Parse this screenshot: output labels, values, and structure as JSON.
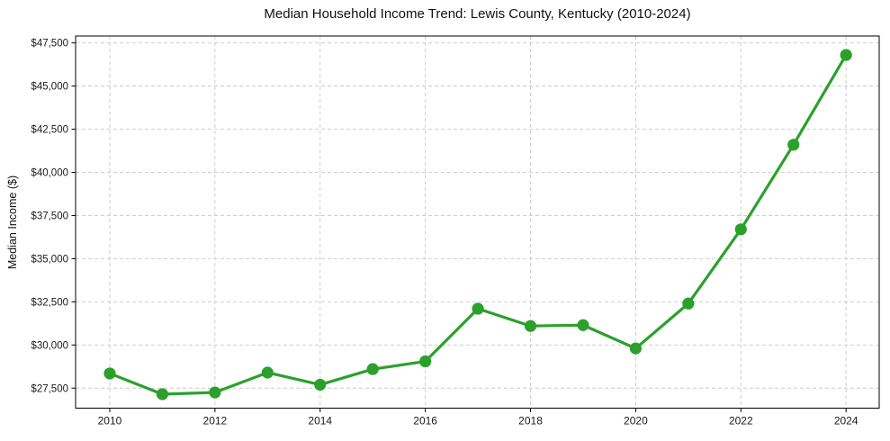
{
  "chart_data": {
    "type": "line",
    "title": "Median Household Income Trend: Lewis County, Kentucky (2010-2024)",
    "xlabel": "",
    "ylabel": "Median Income ($)",
    "x": [
      2010,
      2011,
      2012,
      2013,
      2014,
      2015,
      2016,
      2017,
      2018,
      2019,
      2020,
      2021,
      2022,
      2023,
      2024
    ],
    "values": [
      28350,
      27150,
      27250,
      28400,
      27700,
      28600,
      29050,
      32100,
      31100,
      31150,
      29800,
      32400,
      36700,
      41600,
      46800
    ],
    "xticks": {
      "values": [
        2010,
        2012,
        2014,
        2016,
        2018,
        2020,
        2022,
        2024
      ],
      "labels": [
        "2010",
        "2012",
        "2014",
        "2016",
        "2018",
        "2020",
        "2022",
        "2024"
      ]
    },
    "yticks": {
      "values": [
        27500,
        30000,
        32500,
        35000,
        37500,
        40000,
        42500,
        45000,
        47500
      ],
      "labels": [
        "$27,500",
        "$30,000",
        "$32,500",
        "$35,000",
        "$37,500",
        "$40,000",
        "$42,500",
        "$45,000",
        "$47,500"
      ]
    },
    "xlim": [
      2009.35,
      2024.63
    ],
    "ylim": [
      26340,
      47900
    ],
    "grid": true,
    "legend": false,
    "style": {
      "line_color": "#2ca02c",
      "marker_color": "#2ca02c",
      "grid_color": "#c9c9c9",
      "spine_color": "#000000",
      "text_color": "#1a1a1a",
      "background": "#ffffff"
    }
  }
}
